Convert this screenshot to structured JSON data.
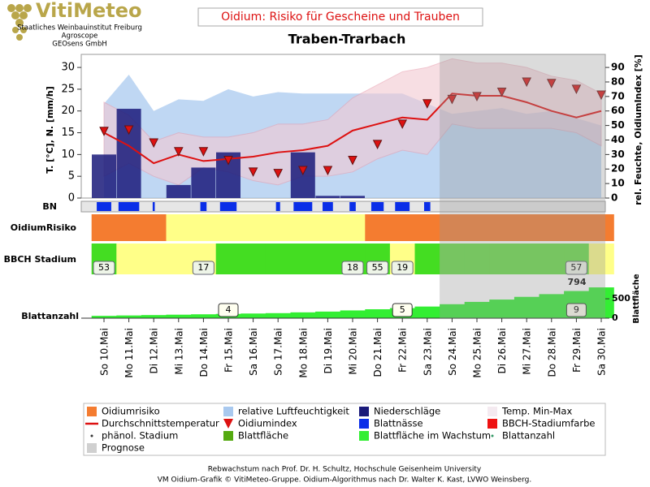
{
  "header": {
    "logo": "VitiMeteo",
    "org1": "Staatliches Weinbauinstitut Freiburg",
    "org2": "Agroscope",
    "org3": "GEOsens GmbH"
  },
  "chart_data": {
    "type": "combo",
    "title": "Oidium: Risiko für Gescheine und Trauben",
    "subtitle": "Traben-Trarbach",
    "y_label": "T. [°C], N. [mm/h]",
    "y2_label": "rel. Feuchte, OidiumIndex [%]",
    "categories": [
      "So 10.Mai",
      "Mo 11.Mai",
      "Di 12.Mai",
      "Mi 13.Mai",
      "Do 14.Mai",
      "Fr 15.Mai",
      "Sa 16.Mai",
      "So 17.Mai",
      "Mo 18.Mai",
      "Di 19.Mai",
      "Mi 20.Mai",
      "Do 21.Mai",
      "Fr 22.Mai",
      "Sa 23.Mai",
      "So 24.Mai",
      "Mo 25.Mai",
      "Di 26.Mai",
      "Mi 27.Mai",
      "Do 28.Mai",
      "Fr 29.Mai",
      "Sa 30.Mai"
    ],
    "ylim": [
      0,
      33
    ],
    "yticks": [
      0,
      5,
      10,
      15,
      20,
      25,
      30
    ],
    "y2lim": [
      0,
      99
    ],
    "y2ticks": [
      0,
      10,
      20,
      30,
      40,
      50,
      60,
      70,
      80,
      90
    ],
    "prognose_start_index": 14,
    "humidity": {
      "color": "#a9c9ef",
      "axis": "y2",
      "values": [
        65,
        85,
        60,
        68,
        67,
        75,
        70,
        73,
        72,
        72,
        72,
        72,
        72,
        65,
        58,
        60,
        62,
        58,
        60,
        55,
        50
      ]
    },
    "temp_min": {
      "color": "#f3c9d2",
      "values": [
        5,
        8,
        5,
        3,
        7,
        6,
        4,
        3,
        5,
        5,
        6,
        9,
        11,
        10,
        17,
        16,
        16,
        16,
        16,
        15,
        12
      ]
    },
    "temp_max": {
      "color": "#f3c9d2",
      "values": [
        22,
        19,
        13,
        15,
        14,
        14,
        15,
        17,
        17,
        18,
        23,
        26,
        29,
        30,
        32,
        31,
        31,
        30,
        28,
        27,
        24
      ]
    },
    "precipitation": {
      "color": "#1a1a7a",
      "values": [
        10,
        20.5,
        0,
        3,
        7,
        10.5,
        0,
        0,
        10.5,
        0.5,
        0.5,
        0,
        0,
        0,
        0,
        0,
        0,
        0,
        0,
        0,
        0
      ]
    },
    "mean_temp": {
      "color": "#dd1111",
      "values": [
        15,
        12,
        8,
        10,
        8.5,
        9,
        9.5,
        10.5,
        11,
        12,
        15.5,
        17,
        18.5,
        18,
        24,
        23.5,
        23.5,
        22,
        20,
        18.5,
        20
      ]
    },
    "oidium_index": {
      "color": "#dd1111",
      "axis": "y2",
      "values": [
        46,
        47,
        38,
        32,
        32,
        26,
        18,
        17,
        19,
        19,
        26,
        37,
        51,
        65,
        68,
        70,
        73,
        80,
        79,
        75,
        71
      ]
    },
    "bn_label": "BN",
    "bn_hours": {
      "color": "#0a2ee8",
      "values": [
        14,
        20,
        2,
        0,
        6,
        16,
        0,
        4,
        18,
        10,
        6,
        12,
        14,
        6,
        0,
        0,
        0,
        0,
        0,
        0,
        0
      ]
    },
    "risk_label": "OidiumRisiko",
    "risk_colors": [
      "#f47c30",
      "#f47c30",
      "#f47c30",
      "#ffff88",
      "#ffff88",
      "#ffff88",
      "#ffff88",
      "#ffff88",
      "#ffff88",
      "#ffff88",
      "#ffff88",
      "#f47c30",
      "#f47c30",
      "#f47c30",
      "#f47c30",
      "#f47c30",
      "#f47c30",
      "#f47c30",
      "#f47c30",
      "#f47c30",
      "#f47c30"
    ],
    "bbch_label": "BBCH Stadium",
    "bbch_colors": [
      "#44dd22",
      "#ffff88",
      "#ffff88",
      "#ffff88",
      "#ffff88",
      "#44dd22",
      "#44dd22",
      "#44dd22",
      "#44dd22",
      "#44dd22",
      "#44dd22",
      "#44dd22",
      "#ffff88",
      "#44dd22",
      "#66dd44",
      "#66dd44",
      "#66dd44",
      "#66dd44",
      "#66dd44",
      "#66dd44",
      "#ffff88"
    ],
    "bbch_stage": [
      53,
      null,
      null,
      null,
      17,
      null,
      null,
      null,
      null,
      null,
      18,
      55,
      19,
      null,
      null,
      null,
      null,
      null,
      null,
      57,
      null
    ],
    "leaf_label": "Blattanzahl",
    "leaf_area_label": "Blattfläche",
    "leaf_area": {
      "color": "#33ee33",
      "values": [
        60,
        70,
        80,
        90,
        100,
        110,
        120,
        130,
        150,
        170,
        200,
        230,
        260,
        300,
        360,
        420,
        480,
        550,
        620,
        700,
        794
      ]
    },
    "leaf_lim": [
      0,
      900
    ],
    "leaf_ticks": [
      0,
      500
    ],
    "leaf_count": [
      null,
      null,
      null,
      null,
      null,
      4,
      null,
      null,
      null,
      null,
      null,
      null,
      5,
      null,
      null,
      null,
      null,
      null,
      null,
      9,
      null
    ],
    "legend": [
      {
        "label": "Oidiumrisiko",
        "color": "#f47c30",
        "symbol": "square"
      },
      {
        "label": "relative Luftfeuchtigkeit",
        "color": "#a9c9ef",
        "symbol": "square"
      },
      {
        "label": "Niederschläge",
        "color": "#1a1a7a",
        "symbol": "square"
      },
      {
        "label": "Temp. Min-Max",
        "color": "#f4eaf0",
        "symbol": "square"
      },
      {
        "label": "Durchschnittstemperatur",
        "color": "#dd1111",
        "symbol": "line"
      },
      {
        "label": "Oidiumindex",
        "color": "#dd1111",
        "symbol": "triangle"
      },
      {
        "label": "Blattnässe",
        "color": "#0a2ee8",
        "symbol": "square"
      },
      {
        "label": "BBCH-Stadiumfarbe",
        "color": "#ee1111",
        "symbol": "square"
      },
      {
        "label": "phänol. Stadium",
        "color": "#333333",
        "symbol": "dot"
      },
      {
        "label": "Blattfläche",
        "color": "#55aa11",
        "symbol": "square"
      },
      {
        "label": "Blattfläche im Wachstum",
        "color": "#33ee33",
        "symbol": "square"
      },
      {
        "label": "Blattanzahl",
        "color": "#339966",
        "symbol": "dot"
      },
      {
        "label": "Prognose",
        "color": "#d0d0d0",
        "symbol": "square"
      }
    ]
  },
  "footer": {
    "line1": "Rebwachstum nach Prof. Dr. H. Schultz, Hochschule Geisenheim University",
    "line2": "VM Oidium-Grafik © VitiMeteo-Gruppe. Oidium-Algorithmus nach Dr. Walter K. Kast, LVWO Weinsberg."
  }
}
